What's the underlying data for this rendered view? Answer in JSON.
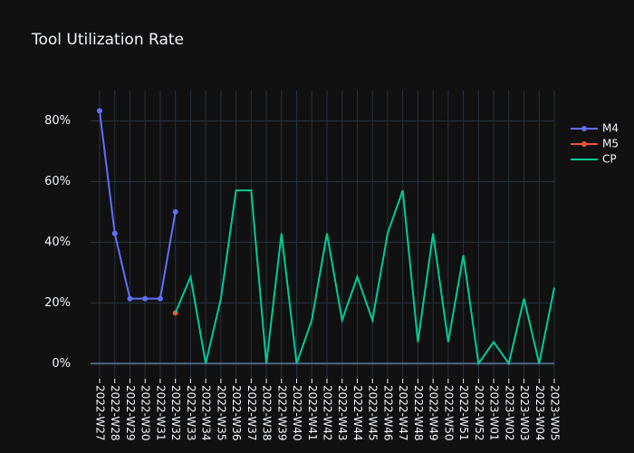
{
  "chart_data": {
    "type": "line",
    "title": "Tool Utilization Rate",
    "categories": [
      "2022-W27",
      "2022-W28",
      "2022-W29",
      "2022-W30",
      "2022-W31",
      "2022-W32",
      "2022-W33",
      "2022-W34",
      "2022-W35",
      "2022-W36",
      "2022-W37",
      "2022-W38",
      "2022-W39",
      "2022-W40",
      "2022-W41",
      "2022-W42",
      "2022-W43",
      "2022-W44",
      "2022-W45",
      "2022-W46",
      "2022-W47",
      "2022-W48",
      "2022-W49",
      "2022-W50",
      "2022-W51",
      "2022-W52",
      "2023-W01",
      "2023-W02",
      "2023-W03",
      "2023-W04",
      "2023-W05"
    ],
    "series": [
      {
        "name": "M4",
        "color": "#636efa",
        "mode": "lines+markers",
        "values": [
          83.3,
          42.9,
          21.4,
          21.4,
          21.4,
          50,
          null,
          null,
          null,
          null,
          null,
          null,
          null,
          null,
          null,
          null,
          null,
          null,
          null,
          null,
          null,
          null,
          null,
          null,
          null,
          null,
          null,
          null,
          null,
          null,
          null
        ]
      },
      {
        "name": "M5",
        "color": "#ef553b",
        "mode": "lines+markers",
        "values": [
          null,
          null,
          null,
          null,
          null,
          16.7,
          null,
          null,
          null,
          null,
          null,
          null,
          null,
          null,
          null,
          null,
          null,
          null,
          null,
          null,
          null,
          null,
          null,
          null,
          null,
          null,
          null,
          null,
          null,
          null,
          null
        ]
      },
      {
        "name": "CP",
        "color": "#00cc96",
        "mode": "lines",
        "values": [
          null,
          null,
          null,
          null,
          null,
          16.7,
          28.6,
          0,
          21.4,
          57.1,
          57.1,
          0,
          42.9,
          0,
          14.3,
          42.9,
          14.3,
          28.6,
          14.3,
          42.9,
          57.1,
          7.1,
          42.9,
          7.1,
          35.7,
          0,
          7.1,
          0,
          21.4,
          0,
          25
        ]
      }
    ],
    "ylim": [
      -5,
      90
    ],
    "yticks": [
      {
        "value": 0,
        "label": "0%"
      },
      {
        "value": 20,
        "label": "20%"
      },
      {
        "value": 40,
        "label": "40%"
      },
      {
        "value": 60,
        "label": "60%"
      },
      {
        "value": 80,
        "label": "80%"
      }
    ],
    "grid": true,
    "legend": "top-right"
  }
}
